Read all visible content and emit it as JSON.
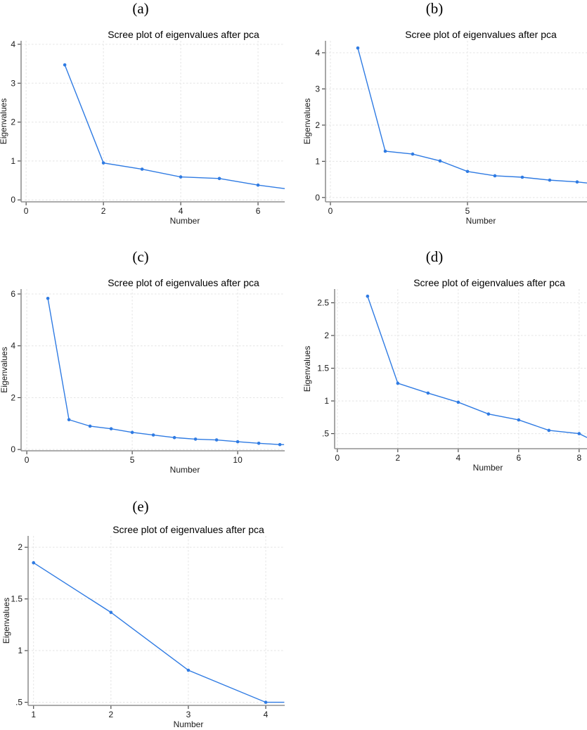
{
  "style": {
    "line_color": "#2f7be3",
    "marker_color": "#2f7be3",
    "grid_color": "#e4e4e4",
    "axis_color": "#919191",
    "tick_color": "#3c3c3c",
    "text_color": "#1a1a1a",
    "background": "#ffffff"
  },
  "chart_data": [
    {
      "id": "a",
      "panel_label": "(a)",
      "type": "line",
      "title": "Scree plot of eigenvalues after pca",
      "xlabel": "Number",
      "ylabel": "Eigenvalues",
      "x": [
        1,
        2,
        3,
        4,
        5,
        6
      ],
      "y": [
        3.47,
        0.95,
        0.79,
        0.59,
        0.55,
        0.38
      ],
      "clipped_continuation": {
        "x": 6.69,
        "y": 0.29
      },
      "xtick_values": [
        0,
        2,
        4,
        6
      ],
      "xtick_labels": [
        "0",
        "2",
        "4",
        "6"
      ],
      "ytick_values": [
        0,
        1,
        2,
        3,
        4
      ],
      "ytick_labels": [
        "0",
        "1",
        "2",
        "3",
        "4"
      ],
      "xlim": [
        -0.13,
        6.69
      ],
      "ylim": [
        -0.05,
        4.09
      ],
      "grid": true,
      "legend": "none"
    },
    {
      "id": "b",
      "panel_label": "(b)",
      "type": "line",
      "title": "Scree plot of eigenvalues after pca",
      "xlabel": "Number",
      "ylabel": "Eigenvalues",
      "x": [
        1,
        2,
        3,
        4,
        5,
        6,
        7,
        8,
        9
      ],
      "y": [
        4.13,
        1.28,
        1.2,
        1.01,
        0.72,
        0.6,
        0.56,
        0.48,
        0.43
      ],
      "clipped_continuation": {
        "x": 9.36,
        "y": 0.4
      },
      "xtick_values": [
        0,
        5
      ],
      "xtick_labels": [
        "0",
        "5"
      ],
      "ytick_values": [
        0,
        1,
        2,
        3,
        4
      ],
      "ytick_labels": [
        "0",
        "1",
        "2",
        "3",
        "4"
      ],
      "xlim": [
        -0.18,
        9.36
      ],
      "ylim": [
        -0.12,
        4.33
      ],
      "grid": true,
      "legend": "none"
    },
    {
      "id": "c",
      "panel_label": "(c)",
      "type": "line",
      "title": "Scree plot of eigenvalues after pca",
      "xlabel": "Number",
      "ylabel": "Eigenvalues",
      "x": [
        1,
        2,
        3,
        4,
        5,
        6,
        7,
        8,
        9,
        10,
        11,
        12
      ],
      "y": [
        5.83,
        1.15,
        0.9,
        0.8,
        0.66,
        0.56,
        0.46,
        0.4,
        0.37,
        0.3,
        0.24,
        0.19
      ],
      "clipped_continuation": {
        "x": 12.2,
        "y": 0.19
      },
      "xtick_values": [
        0,
        5,
        10
      ],
      "xtick_labels": [
        "0",
        "5",
        "10"
      ],
      "ytick_values": [
        0,
        2,
        4,
        6
      ],
      "ytick_labels": [
        "0",
        "2",
        "4",
        "6"
      ],
      "xlim": [
        -0.27,
        12.23
      ],
      "ylim": [
        -0.05,
        6.19
      ],
      "grid": true,
      "legend": "none"
    },
    {
      "id": "d",
      "panel_label": "(d)",
      "type": "line",
      "title": "Scree plot of eigenvalues after pca",
      "xlabel": "Number",
      "ylabel": "Eigenvalues",
      "x": [
        1,
        2,
        3,
        4,
        5,
        6,
        7,
        8
      ],
      "y": [
        2.6,
        1.27,
        1.12,
        0.98,
        0.8,
        0.71,
        0.55,
        0.5
      ],
      "clipped_continuation": {
        "x": 8.26,
        "y": 0.44
      },
      "xtick_values": [
        0,
        2,
        4,
        6,
        8
      ],
      "xtick_labels": [
        "0",
        "2",
        "4",
        "6",
        "8"
      ],
      "ytick_values": [
        0.5,
        1,
        1.5,
        2,
        2.5
      ],
      "ytick_labels": [
        ".5",
        "1",
        "1.5",
        "2",
        "2.5"
      ],
      "xlim": [
        -0.09,
        8.26
      ],
      "ylim": [
        0.27,
        2.71
      ],
      "grid": true,
      "legend": "none"
    },
    {
      "id": "e",
      "panel_label": "(e)",
      "type": "line",
      "title": "Scree plot of eigenvalues after pca",
      "xlabel": "Number",
      "ylabel": "Eigenvalues",
      "x": [
        1,
        2,
        3,
        4
      ],
      "y": [
        1.85,
        1.37,
        0.81,
        0.5
      ],
      "clipped_continuation": {
        "x": 4.24,
        "y": 0.5
      },
      "xtick_values": [
        1,
        2,
        3,
        4
      ],
      "xtick_labels": [
        "1",
        "2",
        "3",
        "4"
      ],
      "ytick_values": [
        0.5,
        1,
        1.5,
        2
      ],
      "ytick_labels": [
        ".5",
        "1",
        "1.5",
        "2"
      ],
      "xlim": [
        0.93,
        4.245
      ],
      "ylim": [
        0.47,
        2.11
      ],
      "grid": true,
      "legend": "none"
    }
  ]
}
